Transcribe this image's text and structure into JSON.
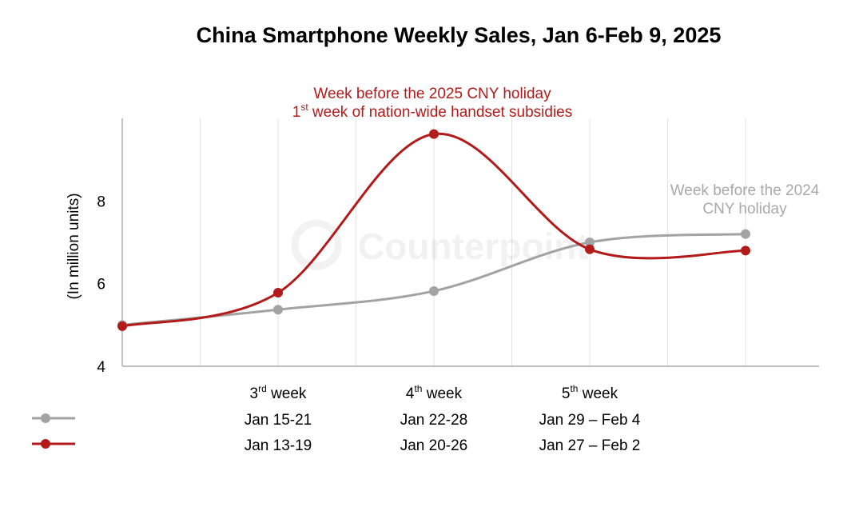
{
  "chart_data": {
    "type": "line",
    "title": "China Smartphone Weekly Sales, Jan 6-Feb 9, 2025",
    "ylabel": "(In million units)",
    "xlabel": "",
    "ylim": [
      4,
      10
    ],
    "yticks": [
      4,
      6,
      8
    ],
    "grid": true,
    "watermark": "Counterpoint",
    "week_labels": [
      {
        "main": "3",
        "sup": "rd",
        "rest": " week"
      },
      {
        "main": "4",
        "sup": "th",
        "rest": " week"
      },
      {
        "main": "5",
        "sup": "th",
        "rest": " week"
      }
    ],
    "week_label_indices": [
      1,
      2,
      3
    ],
    "series": [
      {
        "color": "#a3a3a3",
        "values": [
          5.0,
          5.37,
          5.82,
          7.0,
          7.2
        ],
        "date_labels": [
          "Jan 15-21",
          "Jan 22-28",
          "Jan 29 – Feb 4"
        ],
        "legend_color": "#a3a3a3"
      },
      {
        "color": "#b31b1b",
        "values": [
          4.97,
          5.78,
          9.62,
          6.83,
          6.8
        ],
        "date_labels": [
          "Jan 13-19",
          "Jan 20-26",
          "Jan 27 – Feb 2"
        ],
        "legend_color": "#b31b1b"
      }
    ],
    "annotations": {
      "red": {
        "line1": "Week before the 2025 CNY holiday",
        "line2_main": "1",
        "line2_sup": "st",
        "line2_rest": " week of nation-wide handset subsidies",
        "color": "#b31b1b"
      },
      "grey": {
        "line1": "Week before the 2024",
        "line2": "CNY holiday",
        "color": "#a9a9a9"
      }
    }
  }
}
